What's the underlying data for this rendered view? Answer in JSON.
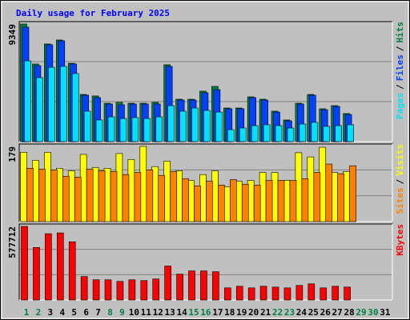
{
  "separator": "/",
  "chart_data": [
    {
      "type": "bar",
      "title": "Daily usage for February 2025",
      "ylim": [
        0,
        9349
      ],
      "yticks": [
        9349
      ],
      "series": [
        {
          "name": "Hits",
          "color": "#008040",
          "values": [
            9349,
            6170,
            7760,
            8080,
            6230,
            3750,
            3630,
            3050,
            3120,
            3050,
            3050,
            3120,
            6110,
            3370,
            3370,
            4010,
            4390,
            2670,
            2670,
            3560,
            3370,
            2420,
            1720,
            3050,
            3750,
            2610,
            2860,
            2230,
            null,
            null,
            null
          ]
        },
        {
          "name": "Files",
          "color": "#0040ff",
          "values": [
            9100,
            6040,
            7700,
            8010,
            6170,
            3690,
            3500,
            2990,
            2930,
            2990,
            2990,
            2990,
            5980,
            3310,
            3310,
            3880,
            4130,
            2610,
            2610,
            3500,
            3310,
            2350,
            1650,
            2990,
            3690,
            2540,
            2800,
            2160,
            null,
            null,
            null
          ]
        },
        {
          "name": "Pages",
          "color": "#00e0ff",
          "values": [
            6420,
            5090,
            5910,
            5980,
            5410,
            2420,
            1720,
            1970,
            1840,
            1910,
            1840,
            1970,
            2860,
            2420,
            2670,
            2480,
            2350,
            950,
            1080,
            1270,
            1340,
            1270,
            1080,
            1400,
            1530,
            1210,
            1270,
            1340,
            null,
            null,
            null
          ]
        }
      ]
    },
    {
      "type": "bar",
      "ylim": [
        0,
        179
      ],
      "yticks": [
        179
      ],
      "series": [
        {
          "name": "Visits",
          "color": "#ffff00",
          "values": [
            165,
            146,
            165,
            127,
            121,
            160,
            129,
            127,
            162,
            148,
            179,
            131,
            144,
            121,
            98,
            112,
            121,
            83,
            96,
            98,
            117,
            117,
            98,
            164,
            154,
            177,
            117,
            119,
            null,
            null,
            null
          ]
        },
        {
          "name": "Sites",
          "color": "#ff8000",
          "values": [
            127,
            125,
            123,
            108,
            106,
            125,
            121,
            119,
            112,
            117,
            123,
            110,
            119,
            102,
            85,
            96,
            87,
            100,
            89,
            87,
            98,
            98,
            98,
            102,
            117,
            137,
            114,
            133,
            null,
            null,
            null
          ]
        }
      ]
    },
    {
      "type": "bar",
      "ylim": [
        0,
        577712
      ],
      "yticks": [
        577712
      ],
      "categories": [
        "1",
        "2",
        "3",
        "4",
        "5",
        "6",
        "7",
        "8",
        "9",
        "10",
        "11",
        "12",
        "13",
        "14",
        "15",
        "16",
        "17",
        "18",
        "19",
        "20",
        "21",
        "22",
        "23",
        "24",
        "25",
        "26",
        "27",
        "28",
        "29",
        "30",
        "31"
      ],
      "category_color": "#000000",
      "weekend_color": "#008040",
      "weekend_indices": [
        0,
        1,
        7,
        8,
        14,
        15,
        21,
        22,
        28,
        29
      ],
      "series": [
        {
          "name": "KBytes",
          "color": "#ff0000",
          "values": [
            577712,
            412650,
            520570,
            526920,
            457090,
            184100,
            158710,
            158710,
            146020,
            158710,
            152360,
            165060,
            266640,
            203150,
            228550,
            228550,
            222200,
            95230,
            107920,
            95230,
            107920,
            101580,
            95230,
            114270,
            126970,
            95230,
            107920,
            101580,
            null,
            null,
            null
          ]
        }
      ]
    }
  ]
}
